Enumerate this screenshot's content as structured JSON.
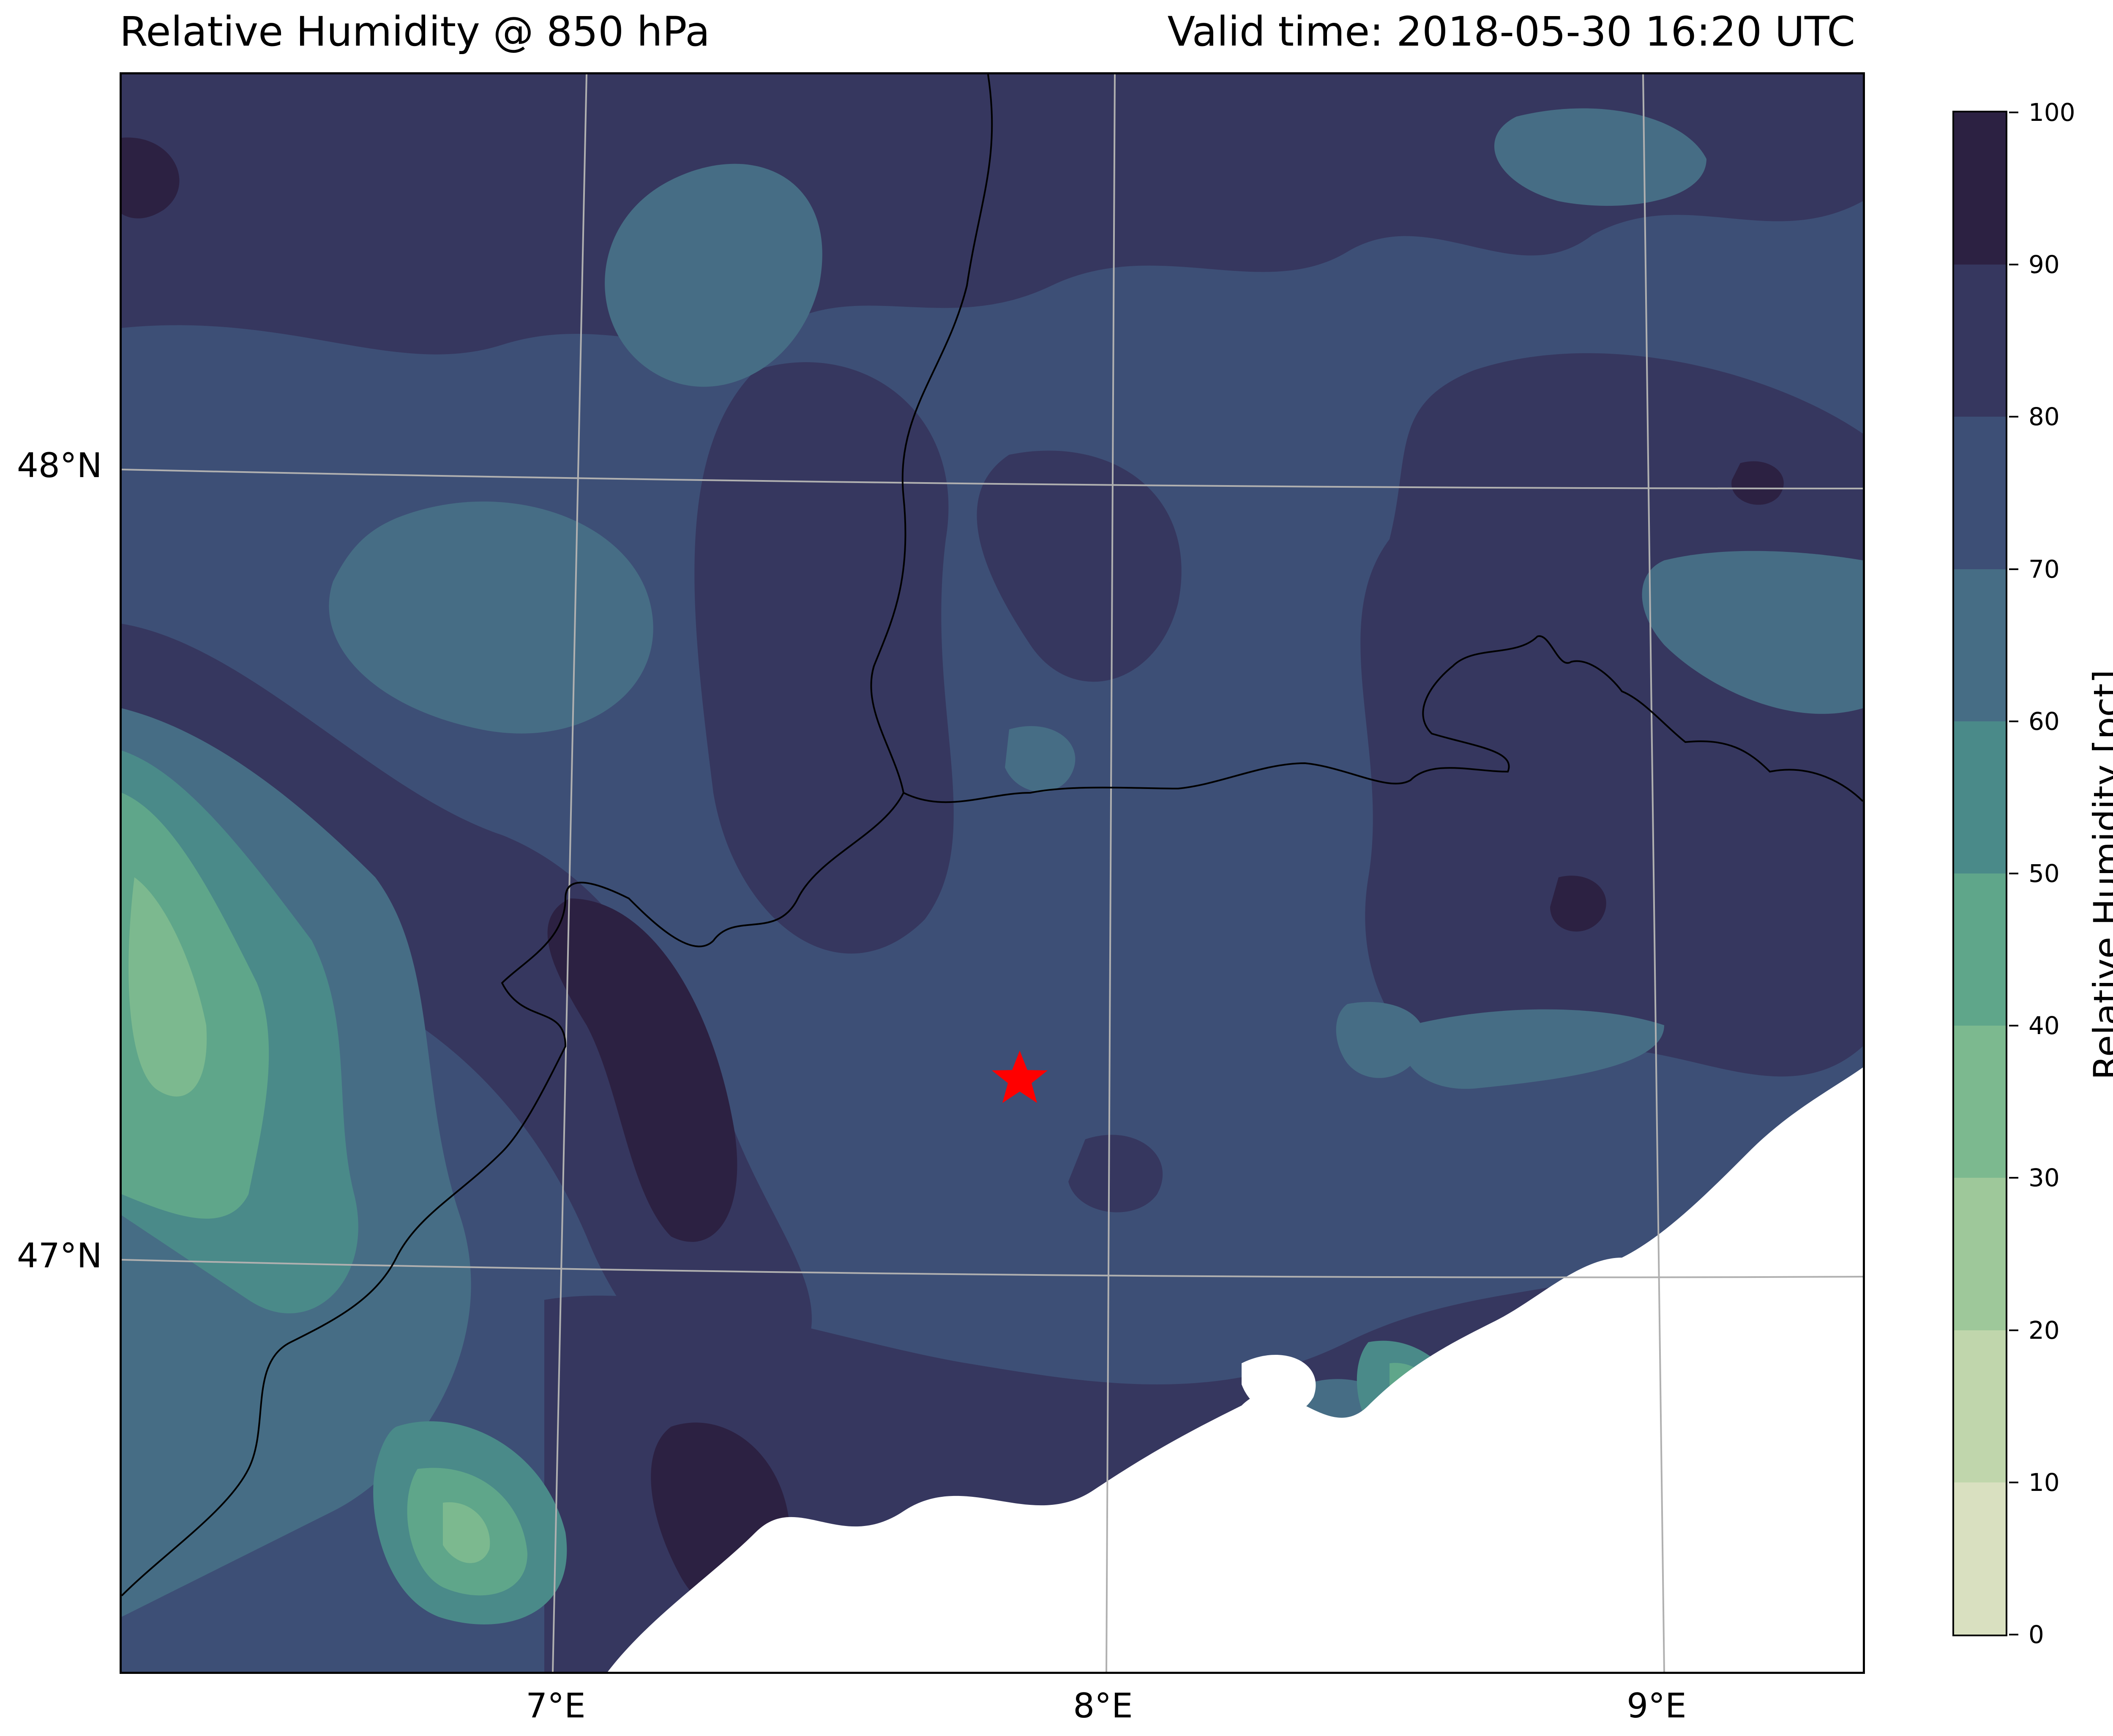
{
  "title_left": "Relative Humidity @ 850 hPa",
  "title_right": "Valid time: 2018-05-30 16:20 UTC",
  "map": {
    "lat_labels": [
      {
        "text": "48°N",
        "value": 48
      },
      {
        "text": "47°N",
        "value": 47
      }
    ],
    "lon_labels": [
      {
        "text": "7°E",
        "value": 7
      },
      {
        "text": "8°E",
        "value": 8
      },
      {
        "text": "9°E",
        "value": 9
      }
    ],
    "marker": {
      "symbol": "star",
      "color": "#ff0000"
    },
    "border_color": "#000000",
    "gridline_color": "#b0b0b0",
    "no_data_color": "#ffffff"
  },
  "colorbar": {
    "label": "Relative Humidity [pct]",
    "min": 0,
    "max": 100,
    "ticks": [
      "0",
      "10",
      "20",
      "30",
      "40",
      "50",
      "60",
      "70",
      "80",
      "90",
      "100"
    ],
    "levels": [
      {
        "from": 0,
        "to": 10,
        "color": "#d9e0c0"
      },
      {
        "from": 10,
        "to": 20,
        "color": "#c0d6ac"
      },
      {
        "from": 20,
        "to": 30,
        "color": "#9ec89a"
      },
      {
        "from": 30,
        "to": 40,
        "color": "#7cb98f"
      },
      {
        "from": 40,
        "to": 50,
        "color": "#5fa68a"
      },
      {
        "from": 50,
        "to": 60,
        "color": "#4a8a89"
      },
      {
        "from": 60,
        "to": 70,
        "color": "#466d85"
      },
      {
        "from": 70,
        "to": 80,
        "color": "#3d4f76"
      },
      {
        "from": 80,
        "to": 90,
        "color": "#36375f"
      },
      {
        "from": 90,
        "to": 100,
        "color": "#2c2142"
      }
    ]
  }
}
